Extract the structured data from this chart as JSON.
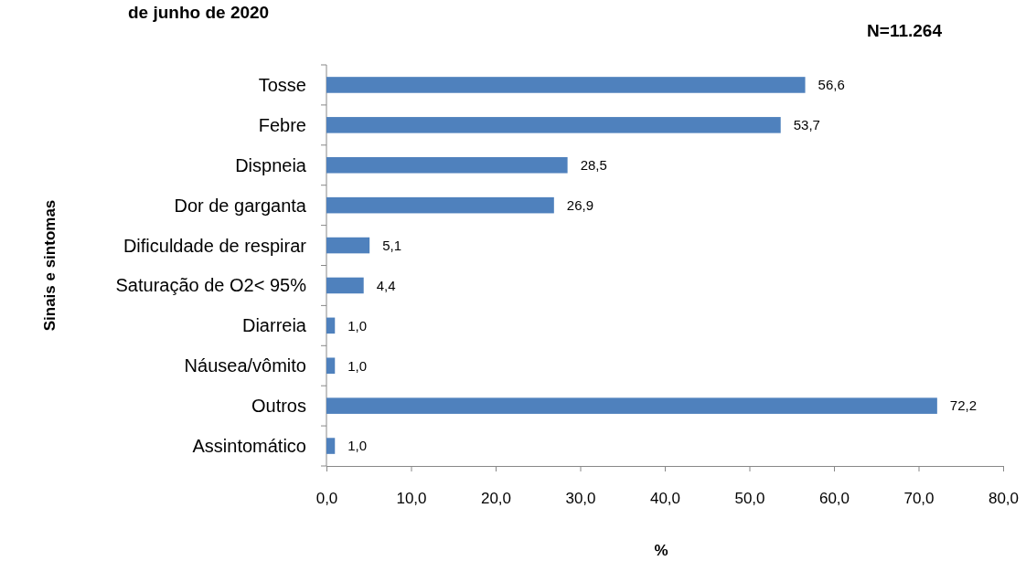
{
  "chart_data": {
    "type": "bar",
    "orientation": "horizontal",
    "title": "de junho de 2020",
    "annotations": [
      "N=11.264"
    ],
    "xlabel": "%",
    "ylabel": "Sinais e sintomas",
    "categories": [
      "Tosse",
      "Febre",
      "Dispneia",
      "Dor de garganta",
      "Dificuldade de respirar",
      "Saturação de O2< 95%",
      "Diarreia",
      "Náusea/vômito",
      "Outros",
      "Assintomático"
    ],
    "values": [
      56.6,
      53.7,
      28.5,
      26.9,
      5.1,
      4.4,
      1.0,
      1.0,
      72.2,
      1.0
    ],
    "value_labels": [
      "56,6",
      "53,7",
      "28,5",
      "26,9",
      "5,1",
      "4,4",
      "1,0",
      "1,0",
      "72,2",
      "1,0"
    ],
    "color": "#4f81bd",
    "xlim": [
      0,
      80
    ],
    "xticks": [
      {
        "value": 0,
        "label": "0,0"
      },
      {
        "value": 10,
        "label": "10,0"
      },
      {
        "value": 20,
        "label": "20,0"
      },
      {
        "value": 30,
        "label": "30,0"
      },
      {
        "value": 40,
        "label": "40,0"
      },
      {
        "value": 50,
        "label": "50,0"
      },
      {
        "value": 60,
        "label": "60,0"
      },
      {
        "value": 70,
        "label": "70,0"
      },
      {
        "value": 80,
        "label": "80,0"
      }
    ],
    "grid": false
  }
}
